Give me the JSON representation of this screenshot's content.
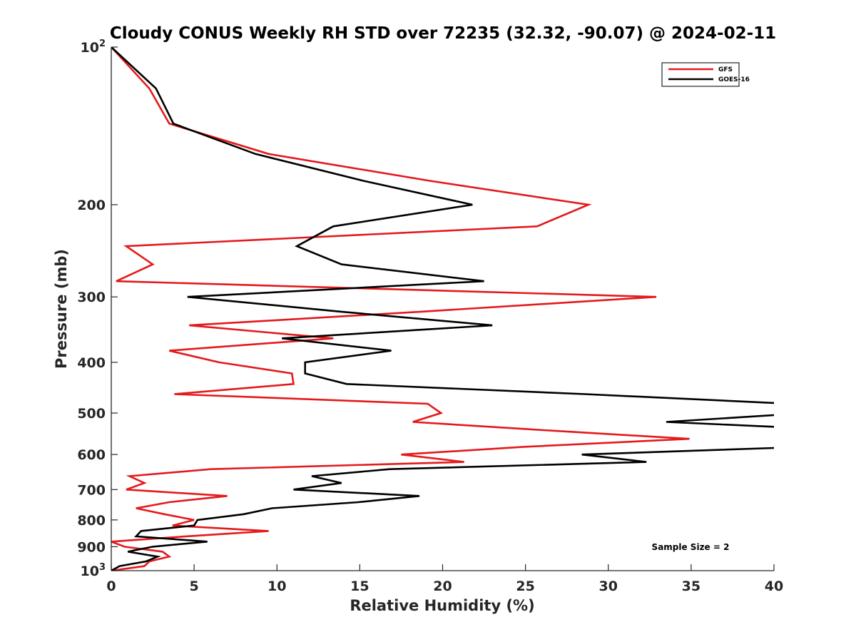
{
  "chart_data": {
    "type": "line",
    "title": "Cloudy CONUS Weekly RH STD over 72235 (32.32, -90.07) @ 2024-02-11",
    "xlabel": "Relative Humidity (%)",
    "ylabel": "Pressure (mb)",
    "xlim": [
      0,
      40
    ],
    "ylim": [
      100,
      1000
    ],
    "yscale": "log",
    "yreversed": true,
    "grid": false,
    "legend_position": "top-right",
    "x_ticks": [
      0,
      5,
      10,
      15,
      20,
      25,
      30,
      35,
      40
    ],
    "x_tick_labels": [
      "0",
      "5",
      "10",
      "15",
      "20",
      "25",
      "30",
      "35",
      "40"
    ],
    "y_ticks": [
      100,
      200,
      300,
      400,
      500,
      600,
      700,
      800,
      900,
      1000
    ],
    "y_tick_labels": [
      {
        "base": "10",
        "exp": "2"
      },
      {
        "text": "200"
      },
      {
        "text": "300"
      },
      {
        "text": "400"
      },
      {
        "text": "500"
      },
      {
        "text": "600"
      },
      {
        "text": "700"
      },
      {
        "text": "800"
      },
      {
        "text": "900"
      },
      {
        "base": "10",
        "exp": "3"
      }
    ],
    "pressure": [
      100,
      120,
      140,
      160,
      180,
      200,
      220,
      240,
      260,
      280,
      300,
      320,
      340,
      360,
      380,
      400,
      420,
      440,
      460,
      480,
      500,
      520,
      540,
      560,
      580,
      600,
      620,
      640,
      660,
      680,
      700,
      720,
      740,
      760,
      780,
      800,
      820,
      840,
      860,
      880,
      900,
      920,
      940,
      960,
      980,
      1000
    ],
    "series": [
      {
        "name": "GFS",
        "color": "#e41a1c",
        "values": [
          0,
          2.3,
          3.5,
          9.5,
          19.2,
          28.8,
          25.7,
          0.9,
          2.5,
          0.3,
          32.9,
          18.8,
          4.7,
          13.4,
          3.5,
          6.5,
          10.9,
          11.0,
          3.8,
          19.1,
          19.9,
          18.2,
          26.5,
          34.9,
          24.9,
          17.5,
          21.3,
          6.0,
          1.1,
          2.0,
          0.9,
          7.0,
          3.5,
          1.5,
          3.2,
          5.0,
          3.7,
          9.5,
          4.5,
          0.0,
          0.8,
          3.1,
          3.5,
          2.3,
          2.0,
          0
        ]
      },
      {
        "name": "GOES-16",
        "color": "#000000",
        "values": [
          0,
          2.7,
          3.75,
          8.7,
          15.2,
          21.8,
          13.4,
          11.2,
          13.9,
          22.5,
          4.6,
          13.8,
          23.0,
          10.3,
          16.9,
          11.7,
          11.7,
          14.2,
          28.6,
          41,
          42,
          33.5,
          45,
          48,
          42,
          28.4,
          32.3,
          16.8,
          12.1,
          13.9,
          11.0,
          18.6,
          14.9,
          9.7,
          8.0,
          5.2,
          5.0,
          1.8,
          1.5,
          5.8,
          2.5,
          1.0,
          2.8,
          2.1,
          0.5,
          0
        ]
      }
    ],
    "annotations": [
      "Sample Size = 2"
    ]
  }
}
